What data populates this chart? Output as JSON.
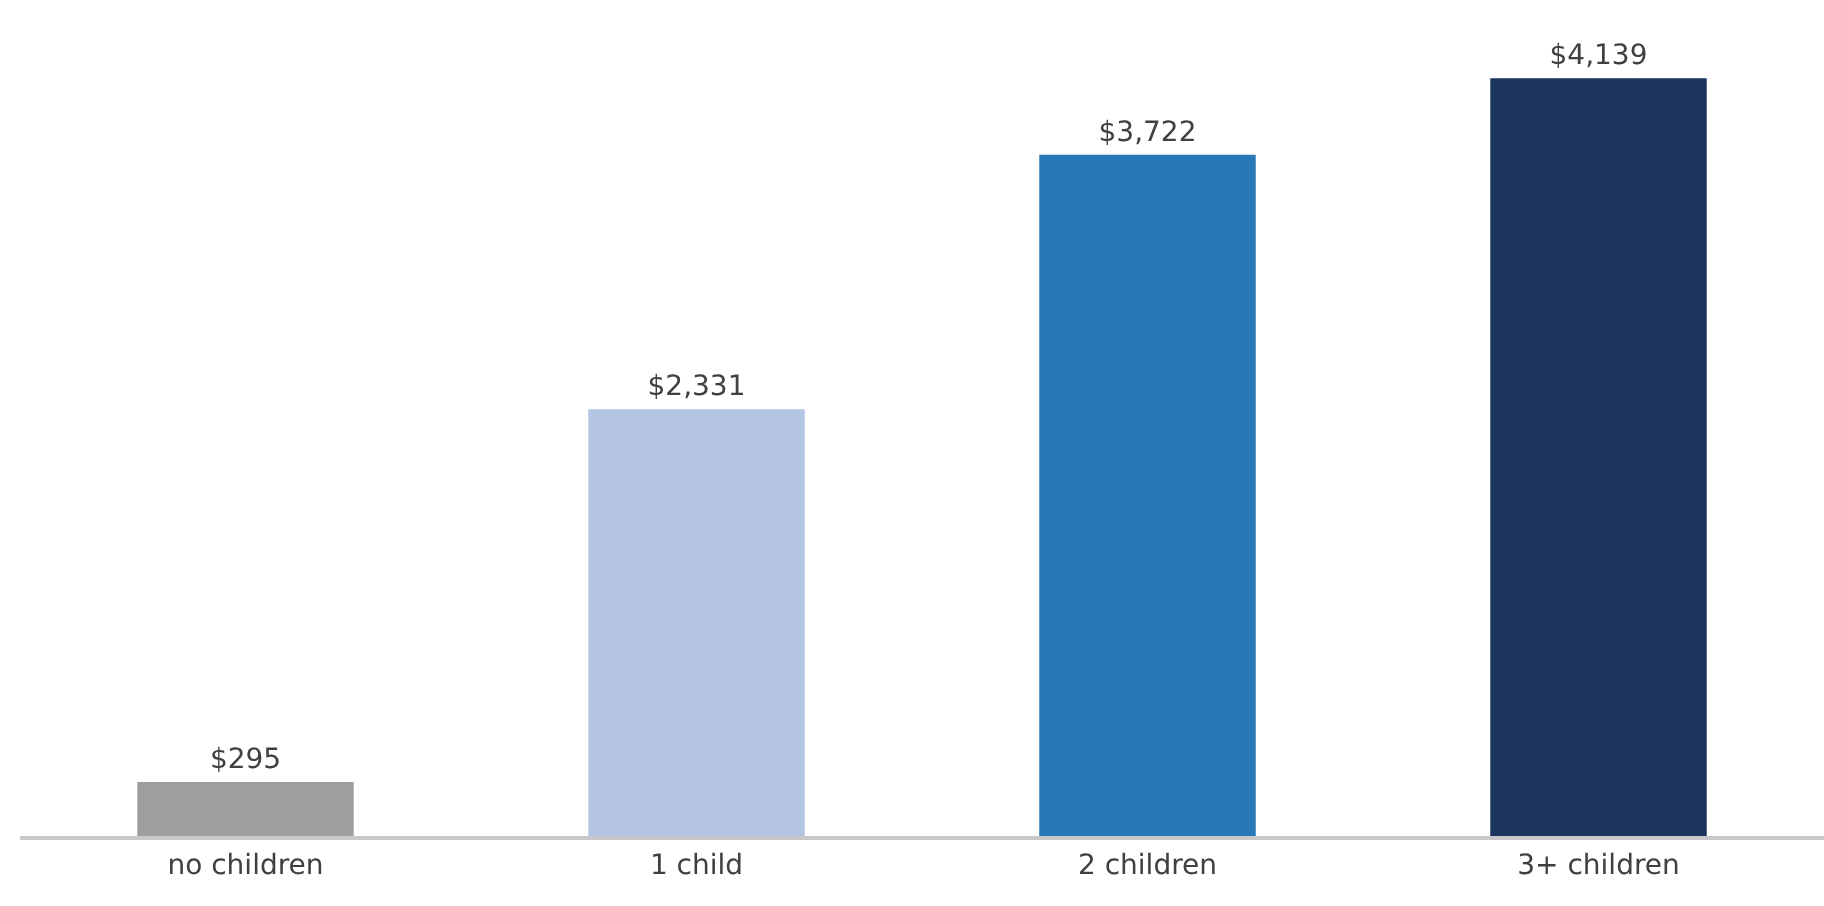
{
  "chart_data": {
    "type": "bar",
    "categories": [
      "no children",
      "1 child",
      "2 children",
      "3+ children"
    ],
    "values": [
      295,
      2331,
      3722,
      4139
    ],
    "colors": [
      "#9e9e9e",
      "#b4c5e4",
      "#2878b8",
      "#1c355e"
    ],
    "value_labels": [
      "$295",
      "$2,331",
      "$3,722",
      "$4,139"
    ],
    "grid": false
  }
}
